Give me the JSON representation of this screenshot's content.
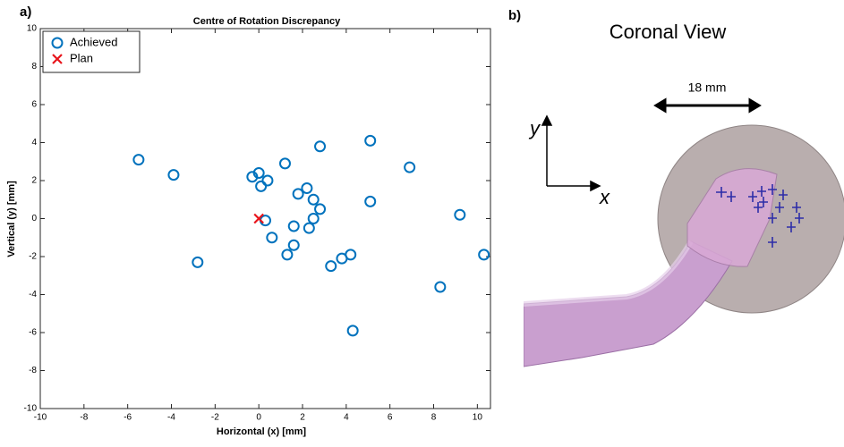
{
  "chart_data": {
    "type": "scatter",
    "panel_label": "a)",
    "title": "Centre of Rotation Discrepancy",
    "x_label": "Horizontal (x) [mm]",
    "y_label": "Vertical (y) [mm]",
    "xlim": [
      -10,
      10.6
    ],
    "ylim": [
      -10,
      10
    ],
    "xticks": [
      -10,
      -8,
      -6,
      -4,
      -2,
      0,
      2,
      4,
      6,
      8,
      10
    ],
    "yticks": [
      -10,
      -8,
      -6,
      -4,
      -2,
      0,
      2,
      4,
      6,
      8,
      10
    ],
    "legend": "upper left",
    "series": [
      {
        "name": "Achieved",
        "color": "#0072bd",
        "marker": "circle",
        "x": [
          -5.5,
          -3.9,
          -2.8,
          -0.3,
          0,
          0.1,
          0.4,
          0.3,
          0.6,
          1.2,
          1.3,
          1.6,
          1.6,
          1.8,
          2.2,
          2.3,
          2.5,
          2.5,
          2.8,
          2.8,
          3.3,
          3.8,
          4.2,
          4.3,
          5.1,
          5.1,
          6.9,
          8.3,
          9.2,
          10.3
        ],
        "values": [
          3.1,
          2.3,
          -2.3,
          2.2,
          2.4,
          1.7,
          2.0,
          -0.1,
          -1.0,
          2.9,
          -1.9,
          -0.4,
          -1.4,
          1.3,
          1.6,
          -0.5,
          0,
          1.0,
          0.5,
          3.8,
          -2.5,
          -2.1,
          -1.9,
          -5.9,
          4.1,
          0.9,
          2.7,
          -3.6,
          0.2,
          -1.9
        ]
      },
      {
        "name": "Plan",
        "color": "#e8141b",
        "marker": "x",
        "x": [
          0
        ],
        "values": [
          0
        ]
      }
    ]
  },
  "panel_b": {
    "panel_label": "b)",
    "title": "Coronal View",
    "scale_label": "18 mm",
    "y_axis": "y",
    "x_axis": "x"
  }
}
